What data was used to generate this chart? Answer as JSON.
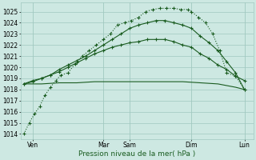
{
  "background_color": "#cde8e2",
  "grid_color": "#a0c8c0",
  "line_color": "#1a5c20",
  "ylim": [
    1013.5,
    1025.8
  ],
  "xlim": [
    -0.2,
    13.0
  ],
  "xlabel": "Pression niveau de la mer( hPa )",
  "xlabel_fontsize": 6.5,
  "xlabel_color": "#1a5c20",
  "tick_fontsize": 5.5,
  "day_labels": [
    "Ven",
    "Mar",
    "Sam",
    "Dim",
    "Lun"
  ],
  "day_positions": [
    0.5,
    4.5,
    6.0,
    9.5,
    12.5
  ],
  "vline_positions": [
    0.5,
    4.5,
    6.0,
    9.5,
    12.5
  ],
  "yticks": [
    1014,
    1015,
    1016,
    1017,
    1018,
    1019,
    1020,
    1021,
    1022,
    1023,
    1024,
    1025
  ],
  "line1_x": [
    0,
    0.3,
    0.6,
    0.9,
    1.2,
    1.5,
    1.8,
    2.1,
    2.5,
    2.9,
    3.3,
    3.7,
    4.1,
    4.5,
    4.9,
    5.3,
    5.7,
    6.1,
    6.5,
    6.9,
    7.3,
    7.7,
    8.1,
    8.5,
    8.9,
    9.3,
    9.5,
    9.9,
    10.3,
    10.7,
    11.1,
    11.5,
    12.0,
    12.5
  ],
  "line1_y": [
    1014.0,
    1015.0,
    1015.8,
    1016.5,
    1017.5,
    1018.2,
    1018.8,
    1019.3,
    1019.5,
    1020.3,
    1021.0,
    1021.5,
    1022.0,
    1022.5,
    1023.0,
    1023.8,
    1024.0,
    1024.2,
    1024.5,
    1025.0,
    1025.2,
    1025.3,
    1025.3,
    1025.3,
    1025.2,
    1025.2,
    1025.0,
    1024.5,
    1024.0,
    1023.0,
    1021.5,
    1019.5,
    1019.2,
    1018.0
  ],
  "line2_x": [
    0,
    0.5,
    1.0,
    1.5,
    2.0,
    2.5,
    3.0,
    3.5,
    4.0,
    4.5,
    5.0,
    5.5,
    6.0,
    6.5,
    7.0,
    7.5,
    8.0,
    8.5,
    9.0,
    9.5,
    10.0,
    10.5,
    11.0,
    11.5,
    12.0,
    12.5
  ],
  "line2_y": [
    1018.5,
    1018.8,
    1019.0,
    1019.3,
    1019.8,
    1020.2,
    1020.6,
    1021.0,
    1021.5,
    1022.0,
    1022.5,
    1023.0,
    1023.5,
    1023.8,
    1024.0,
    1024.2,
    1024.2,
    1024.0,
    1023.8,
    1023.5,
    1022.8,
    1022.2,
    1021.5,
    1020.5,
    1019.5,
    1018.0
  ],
  "line3_x": [
    0,
    0.5,
    1.0,
    1.5,
    2.0,
    2.5,
    3.0,
    3.5,
    4.0,
    4.5,
    5.0,
    5.5,
    6.0,
    6.5,
    7.0,
    7.5,
    8.0,
    8.5,
    9.0,
    9.5,
    10.0,
    10.5,
    11.0,
    11.5,
    12.0,
    12.5
  ],
  "line3_y": [
    1018.5,
    1018.7,
    1019.0,
    1019.3,
    1019.6,
    1020.0,
    1020.4,
    1020.8,
    1021.2,
    1021.5,
    1021.8,
    1022.0,
    1022.2,
    1022.3,
    1022.5,
    1022.5,
    1022.5,
    1022.3,
    1022.0,
    1021.8,
    1021.2,
    1020.8,
    1020.2,
    1019.8,
    1019.2,
    1018.8
  ],
  "line4_x": [
    0,
    1.0,
    2.0,
    3.0,
    4.0,
    5.0,
    6.0,
    7.0,
    8.0,
    9.0,
    10.0,
    11.0,
    12.0,
    12.5
  ],
  "line4_y": [
    1018.5,
    1018.5,
    1018.6,
    1018.6,
    1018.7,
    1018.7,
    1018.7,
    1018.7,
    1018.7,
    1018.7,
    1018.6,
    1018.5,
    1018.2,
    1018.0
  ]
}
